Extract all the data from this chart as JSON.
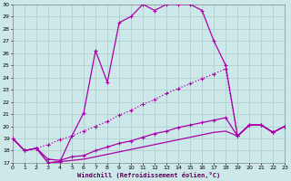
{
  "xlabel": "Windchill (Refroidissement éolien,°C)",
  "xlim": [
    0,
    23
  ],
  "ylim": [
    17,
    30
  ],
  "yticks": [
    17,
    18,
    19,
    20,
    21,
    22,
    23,
    24,
    25,
    26,
    27,
    28,
    29,
    30
  ],
  "xticks": [
    0,
    1,
    2,
    3,
    4,
    5,
    6,
    7,
    8,
    9,
    10,
    11,
    12,
    13,
    14,
    15,
    16,
    17,
    18,
    19,
    20,
    21,
    22,
    23
  ],
  "bg": "#cce8e8",
  "grid_color": "#aacccc",
  "lc": "#aa00aa",
  "curve1_x": [
    0,
    1,
    2,
    3,
    4,
    5,
    6,
    7,
    8,
    9,
    10,
    11,
    12,
    13,
    14,
    15,
    16,
    17,
    18,
    19,
    20,
    21,
    22,
    23
  ],
  "curve1_y": [
    19,
    18,
    18.2,
    17.0,
    17.1,
    19.2,
    21.1,
    26.2,
    23.6,
    28.5,
    29.0,
    30.0,
    29.5,
    30.0,
    30.0,
    30.0,
    29.5,
    27.0,
    25.0,
    19.2,
    20.1,
    20.1,
    19.5,
    20.0
  ],
  "curve2_x": [
    0,
    1,
    2,
    3,
    4,
    5,
    6,
    7,
    8,
    9,
    10,
    11,
    12,
    13,
    14,
    15,
    16,
    17,
    18,
    19,
    20,
    21,
    22,
    23
  ],
  "curve2_y": [
    19,
    18,
    18.2,
    18.5,
    18.9,
    19.2,
    19.6,
    20.0,
    20.4,
    20.9,
    21.3,
    21.8,
    22.2,
    22.7,
    23.1,
    23.5,
    23.9,
    24.3,
    24.7,
    19.2,
    20.1,
    20.1,
    19.5,
    20.0
  ],
  "curve3_x": [
    0,
    1,
    2,
    3,
    4,
    5,
    6,
    7,
    8,
    9,
    10,
    11,
    12,
    13,
    14,
    15,
    16,
    17,
    18,
    19,
    20,
    21,
    22,
    23
  ],
  "curve3_y": [
    19,
    18,
    18.2,
    17.3,
    17.2,
    17.5,
    17.6,
    18.0,
    18.3,
    18.6,
    18.8,
    19.1,
    19.4,
    19.6,
    19.9,
    20.1,
    20.3,
    20.5,
    20.7,
    19.2,
    20.1,
    20.1,
    19.5,
    20.0
  ],
  "curve4_x": [
    0,
    1,
    2,
    3,
    4,
    5,
    6,
    7,
    8,
    9,
    10,
    11,
    12,
    13,
    14,
    15,
    16,
    17,
    18,
    19,
    20,
    21,
    22,
    23
  ],
  "curve4_y": [
    19,
    18,
    18.2,
    17.0,
    17.1,
    17.2,
    17.3,
    17.5,
    17.7,
    17.9,
    18.1,
    18.3,
    18.5,
    18.7,
    18.9,
    19.1,
    19.3,
    19.5,
    19.6,
    19.2,
    20.1,
    20.1,
    19.5,
    20.0
  ]
}
